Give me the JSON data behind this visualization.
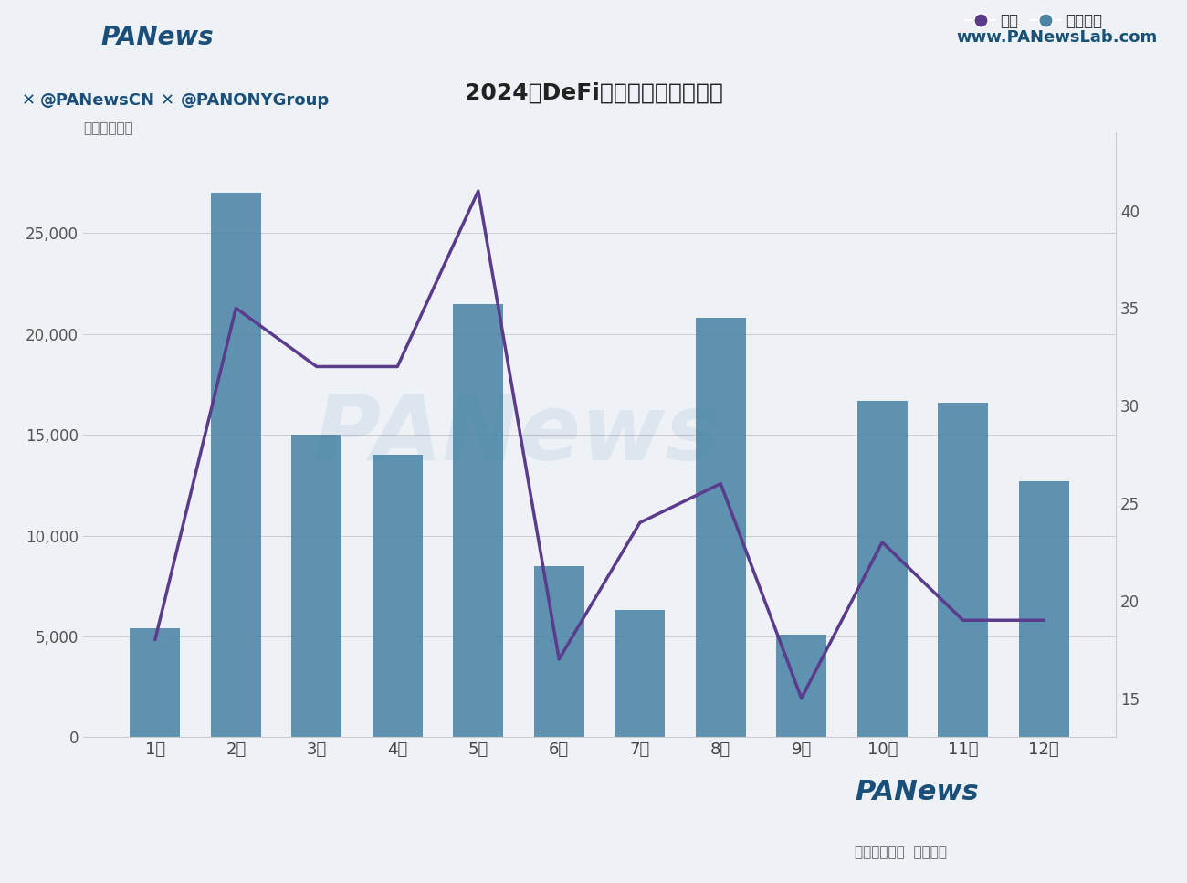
{
  "title": "2024年DeFi赛道各月投融资情况",
  "unit_label": "单位：万美元",
  "months": [
    "1月",
    "2月",
    "3月",
    "4月",
    "5月",
    "6月",
    "7月",
    "8月",
    "9月",
    "10月",
    "11月",
    "12月"
  ],
  "bar_values": [
    5400,
    27000,
    15000,
    14000,
    21500,
    8500,
    6300,
    20800,
    5100,
    16700,
    16600,
    12700
  ],
  "line_values": [
    18,
    35,
    32,
    32,
    41,
    17,
    24,
    26,
    15,
    23,
    19,
    19
  ],
  "bar_color": "#4a85a6",
  "line_color": "#5b3b8c",
  "bg_main": "#eef2f7",
  "bg_header": "#eef2f7",
  "bg_footer_bar": "#dce8f0",
  "bg_bottom": "#ffffff",
  "ylim_left": [
    0,
    30000
  ],
  "ylim_right": [
    13,
    44
  ],
  "yticks_left": [
    0,
    5000,
    10000,
    15000,
    20000,
    25000
  ],
  "yticks_right": [
    15,
    20,
    25,
    30,
    35,
    40
  ],
  "legend_items": [
    "数量",
    "资金规模"
  ],
  "legend_dot_colors": [
    "#5b3b8c",
    "#4a85a6"
  ],
  "watermark_text": "PANews",
  "footer_text1": "@PANewsCN",
  "footer_text2": "@PANONYGroup",
  "website_text": "www.PANewsLab.com",
  "panews_text": "PANews",
  "footer_sub_text": "扫码下载应用  阅读原文"
}
